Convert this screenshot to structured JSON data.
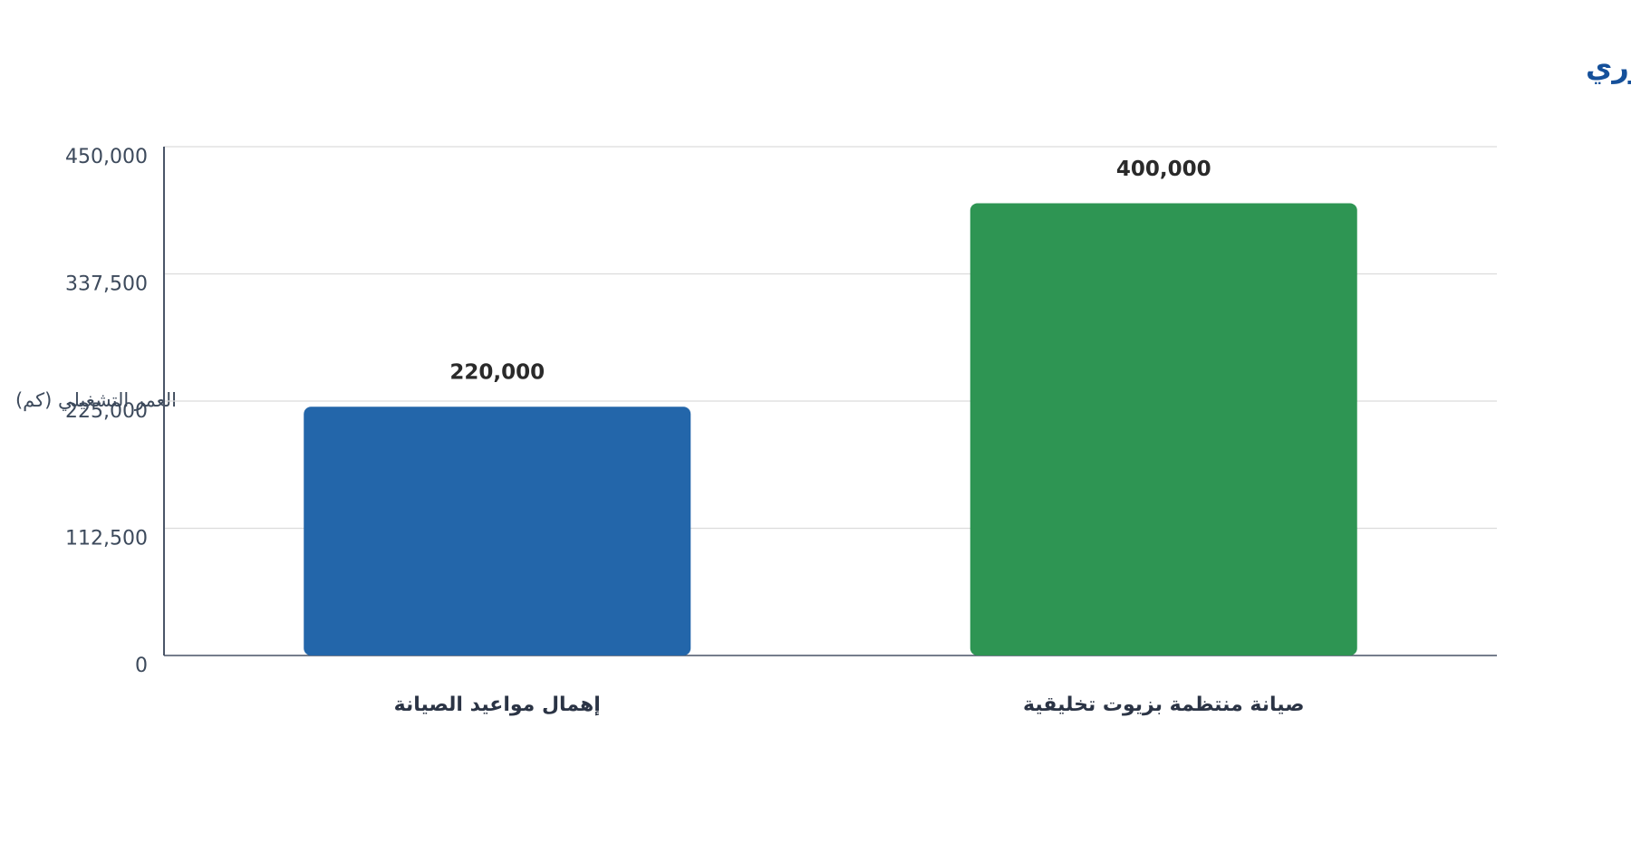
{
  "chart_data": {
    "type": "bar",
    "title": "أثر الصيانة المنتظمة على عمر المحرك الكوري",
    "y_label": "العمر التشغيلي (كم)",
    "categories": [
      "إهمال مواعيد الصيانة",
      "صيانة منتظمة بزيوت تخليقية"
    ],
    "values": [
      220000,
      400000
    ],
    "value_labels": [
      "220,000",
      "400,000"
    ],
    "colors": [
      "#2366aa",
      "#2e9553"
    ],
    "ylim": [
      0,
      450000
    ],
    "yticks": [
      0,
      {
        "value": 112500,
        "label": "112,500"
      },
      {
        "value": 225000,
        "label": "225,000"
      },
      {
        "value": 337500,
        "label": "337,500"
      },
      {
        "value": 450000,
        "label": "450,000"
      }
    ],
    "grid": true
  }
}
